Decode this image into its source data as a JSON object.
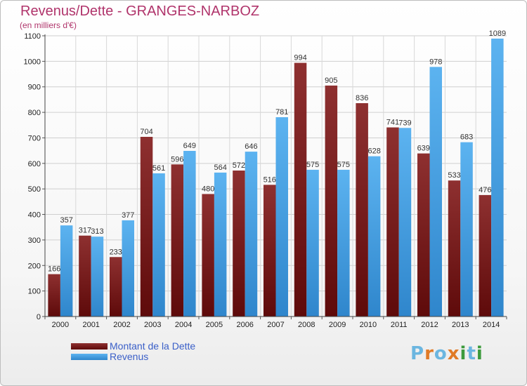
{
  "chart_data": {
    "type": "bar",
    "title": "Revenus/Dette - GRANGES-NARBOZ",
    "subtitle": "(en milliers d'€)",
    "xlabel": "",
    "ylabel": "",
    "categories": [
      "2000",
      "2001",
      "2002",
      "2003",
      "2004",
      "2005",
      "2006",
      "2007",
      "2008",
      "2009",
      "2010",
      "2011",
      "2012",
      "2013",
      "2014"
    ],
    "series": [
      {
        "name": "Montant de la Dette",
        "color": "#7a1a1a",
        "values": [
          166,
          317,
          233,
          704,
          596,
          480,
          572,
          516,
          994,
          905,
          836,
          741,
          639,
          533,
          476
        ]
      },
      {
        "name": "Revenus",
        "color": "#4aa3e6",
        "values": [
          357,
          313,
          377,
          561,
          649,
          564,
          646,
          781,
          575,
          575,
          628,
          739,
          978,
          683,
          1089
        ]
      }
    ],
    "ylim": [
      0,
      1100
    ],
    "yticks": [
      0,
      100,
      200,
      300,
      400,
      500,
      600,
      700,
      800,
      900,
      1000,
      1100
    ],
    "grid": true,
    "legend_position": "bottom-left"
  },
  "logo": {
    "text": "Proxiti"
  }
}
